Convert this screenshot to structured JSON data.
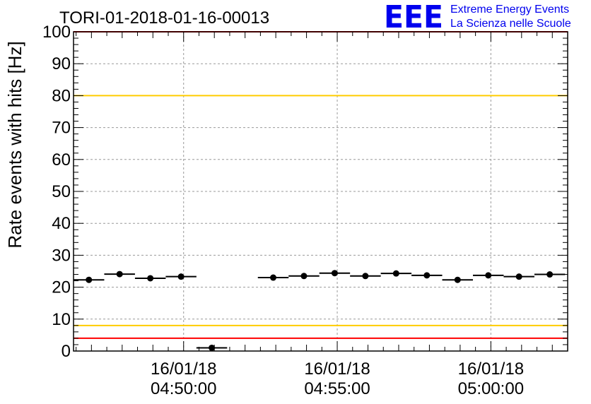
{
  "chart_data": {
    "type": "scatter",
    "title": "TORI-01-2018-01-16-00013",
    "ylabel": "Rate events with hits [Hz]",
    "xlabel": "",
    "ylim": [
      0,
      100
    ],
    "yticks": [
      0,
      10,
      20,
      30,
      40,
      50,
      60,
      70,
      80,
      90,
      100
    ],
    "xlim": [
      "2018-01-16 04:46:25",
      "2018-01-16 05:02:30"
    ],
    "xticks": [
      {
        "value": "2018-01-16 04:50:00",
        "date": "16/01/18",
        "time": "04:50:00"
      },
      {
        "value": "2018-01-16 04:55:00",
        "date": "16/01/18",
        "time": "04:55:00"
      },
      {
        "value": "2018-01-16 05:00:00",
        "date": "16/01/18",
        "time": "05:00:00"
      }
    ],
    "grid": true,
    "bin_width_seconds": 60,
    "series": [
      {
        "points": [
          {
            "x": "2018-01-16 04:46:55",
            "y": 22.3
          },
          {
            "x": "2018-01-16 04:47:55",
            "y": 24.1
          },
          {
            "x": "2018-01-16 04:48:55",
            "y": 22.8
          },
          {
            "x": "2018-01-16 04:49:55",
            "y": 23.3
          },
          {
            "x": "2018-01-16 04:50:55",
            "y": 1.0
          },
          {
            "x": "2018-01-16 04:52:55",
            "y": 23.0
          },
          {
            "x": "2018-01-16 04:53:55",
            "y": 23.5
          },
          {
            "x": "2018-01-16 04:54:55",
            "y": 24.4
          },
          {
            "x": "2018-01-16 04:55:55",
            "y": 23.5
          },
          {
            "x": "2018-01-16 04:56:55",
            "y": 24.3
          },
          {
            "x": "2018-01-16 04:57:55",
            "y": 23.7
          },
          {
            "x": "2018-01-16 04:58:55",
            "y": 22.3
          },
          {
            "x": "2018-01-16 04:59:55",
            "y": 23.7
          },
          {
            "x": "2018-01-16 05:00:55",
            "y": 23.3
          },
          {
            "x": "2018-01-16 05:01:55",
            "y": 24.0
          }
        ],
        "color": "#000000"
      }
    ],
    "reference_lines": [
      {
        "y": 100,
        "color": "#ff0000"
      },
      {
        "y": 80,
        "color": "#ffcc00"
      },
      {
        "y": 8,
        "color": "#ffcc00"
      },
      {
        "y": 4,
        "color": "#ff0000"
      }
    ]
  },
  "logo": {
    "mark": "EEE",
    "line1": "Extreme Energy Events",
    "line2": "La Scienza nelle Scuole",
    "color": "#0000ee"
  }
}
